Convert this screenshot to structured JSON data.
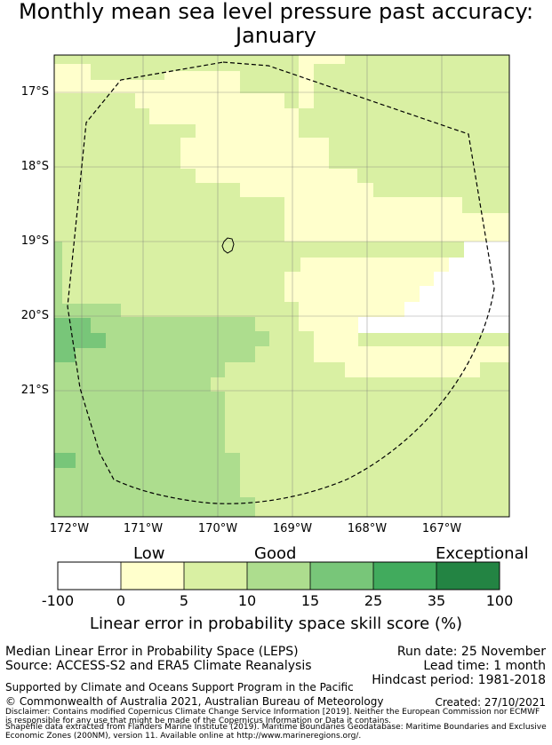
{
  "title": {
    "line1": "Monthly mean sea level pressure past accuracy:",
    "line2": "January"
  },
  "map": {
    "lat_ticks": [
      "17°S",
      "18°S",
      "19°S",
      "20°S",
      "21°S"
    ],
    "lon_ticks": [
      "172°W",
      "171°W",
      "170°W",
      "169°W",
      "168°W",
      "167°W"
    ],
    "category_colors": {
      "white": "#ffffff",
      "low": "#ffffcc",
      "good_a": "#d9f0a3",
      "good_b": "#addd8e",
      "good_c": "#78c679",
      "excep_a": "#41ab5d",
      "excep_b": "#238443"
    }
  },
  "colorbar": {
    "category_labels": [
      "Low",
      "Good",
      "Exceptional"
    ],
    "ticks": [
      "-100",
      "0",
      "5",
      "10",
      "15",
      "25",
      "35",
      "100"
    ],
    "colors": [
      "#ffffff",
      "#ffffcc",
      "#d9f0a3",
      "#addd8e",
      "#78c679",
      "#41ab5d",
      "#238443"
    ],
    "title": "Linear error in probability space skill score (%)"
  },
  "footer": {
    "method": "Median Linear Error in Probability Space (LEPS)",
    "source": "Source: ACCESS-S2 and ERA5 Climate Reanalysis",
    "run_date": "Run date: 25 November",
    "lead_time": "Lead time: 1 month",
    "hindcast": "Hindcast period: 1981-2018",
    "support": "Supported by Climate and Oceans Support Program in the Pacific",
    "copyright": "© Commonwealth of Australia 2021, Australian Bureau of Meteorology",
    "created": "Created: 27/10/2021",
    "disclaimer": "Disclaimer: Contains modified Copernicus Climate Change Service Information [2019]. Neither the European Commission nor ECMWF is responsible for any use that might be made of the Copernicus Information or Data it contains.",
    "shapefile": "Shapefile data extracted from Flanders Marine Institute (2019). Maritime Boundaries Geodatabase: Maritime Boundaries and Exclusive Economic Zones (200NM), version 11. Available online at http://www.marineregions.org/."
  }
}
